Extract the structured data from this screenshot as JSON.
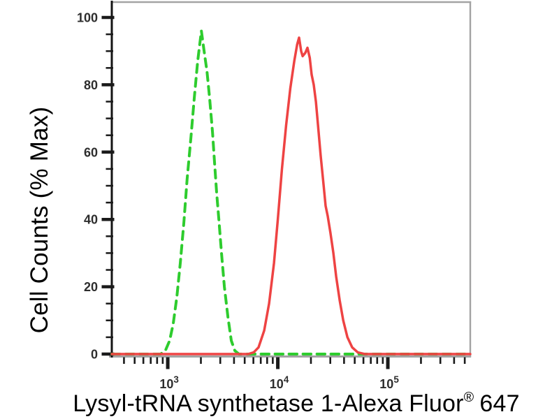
{
  "page": {
    "background": "#ffffff"
  },
  "chart_data": {
    "type": "line",
    "subtype": "flow-cytometry-overlay-histogram",
    "title": "",
    "xlabel": "Lysyl-tRNA synthetase 1-Alexa Fluor® 647",
    "xlabel_parts": {
      "main": "Lysyl-tRNA synthetase 1-Alexa Fluor",
      "registered": "®",
      "suffix": "647"
    },
    "ylabel": "Cell Counts (% Max)",
    "x_scale": "log",
    "x_range": [
      310,
      561000
    ],
    "y_range": [
      0,
      104.5
    ],
    "grid": false,
    "legend": "none",
    "x_major_ticks": [
      {
        "value": 1000,
        "base": "10",
        "exponent": "3"
      },
      {
        "value": 10000,
        "base": "10",
        "exponent": "4"
      },
      {
        "value": 100000,
        "base": "10",
        "exponent": "5"
      }
    ],
    "x_minor_ticks_rule": "2-9 per log decade within range",
    "y_major_ticks": [
      "100",
      "80",
      "60",
      "40",
      "20",
      "0"
    ],
    "y_major_tick_values": [
      100,
      80,
      60,
      40,
      20,
      0
    ],
    "y_minor_tick_step": 5,
    "axis_colors": {
      "frame_gray": "#a3a3a3",
      "axis_black": "#141414",
      "tick_black": "#1a1a1a",
      "tick_label": "#2d2d2d"
    },
    "series": [
      {
        "name": "green-dashed-control",
        "line_style": "dashed",
        "color": "#2ecc2e",
        "peak_x": 2000,
        "peak_y": 96,
        "points": [
          [
            310,
            0
          ],
          [
            860,
            0
          ],
          [
            950,
            1
          ],
          [
            1040,
            4
          ],
          [
            1120,
            9
          ],
          [
            1210,
            17
          ],
          [
            1300,
            27
          ],
          [
            1400,
            39
          ],
          [
            1500,
            52
          ],
          [
            1620,
            64
          ],
          [
            1740,
            76
          ],
          [
            1870,
            87
          ],
          [
            2020,
            96
          ],
          [
            2140,
            90
          ],
          [
            2270,
            84
          ],
          [
            2400,
            76
          ],
          [
            2550,
            66
          ],
          [
            2660,
            57
          ],
          [
            2780,
            48
          ],
          [
            2910,
            40
          ],
          [
            3080,
            30
          ],
          [
            3270,
            20
          ],
          [
            3520,
            11
          ],
          [
            3780,
            4
          ],
          [
            4070,
            1
          ],
          [
            4440,
            0
          ],
          [
            561000,
            0
          ]
        ]
      },
      {
        "name": "red-solid-sample",
        "line_style": "solid",
        "color": "#ee4343",
        "peak_x": 15600,
        "peak_y": 94,
        "points": [
          [
            310,
            0
          ],
          [
            5370,
            0
          ],
          [
            6040,
            0.5
          ],
          [
            6680,
            2
          ],
          [
            7520,
            7
          ],
          [
            8330,
            15
          ],
          [
            9230,
            27
          ],
          [
            10000,
            40
          ],
          [
            10900,
            55
          ],
          [
            11900,
            68
          ],
          [
            13000,
            79
          ],
          [
            14100,
            87
          ],
          [
            15000,
            92
          ],
          [
            15600,
            94
          ],
          [
            16300,
            90
          ],
          [
            16800,
            88.5
          ],
          [
            17800,
            89.5
          ],
          [
            18600,
            91
          ],
          [
            19500,
            88
          ],
          [
            20300,
            83
          ],
          [
            21200,
            80
          ],
          [
            22200,
            75
          ],
          [
            23200,
            68
          ],
          [
            24500,
            59
          ],
          [
            26100,
            50
          ],
          [
            27200,
            44
          ],
          [
            28400,
            41
          ],
          [
            30100,
            36
          ],
          [
            32000,
            30
          ],
          [
            33900,
            23
          ],
          [
            36500,
            16
          ],
          [
            39300,
            10
          ],
          [
            42900,
            5
          ],
          [
            47400,
            2
          ],
          [
            53300,
            0.5
          ],
          [
            61700,
            0
          ],
          [
            561000,
            0
          ]
        ]
      }
    ]
  }
}
